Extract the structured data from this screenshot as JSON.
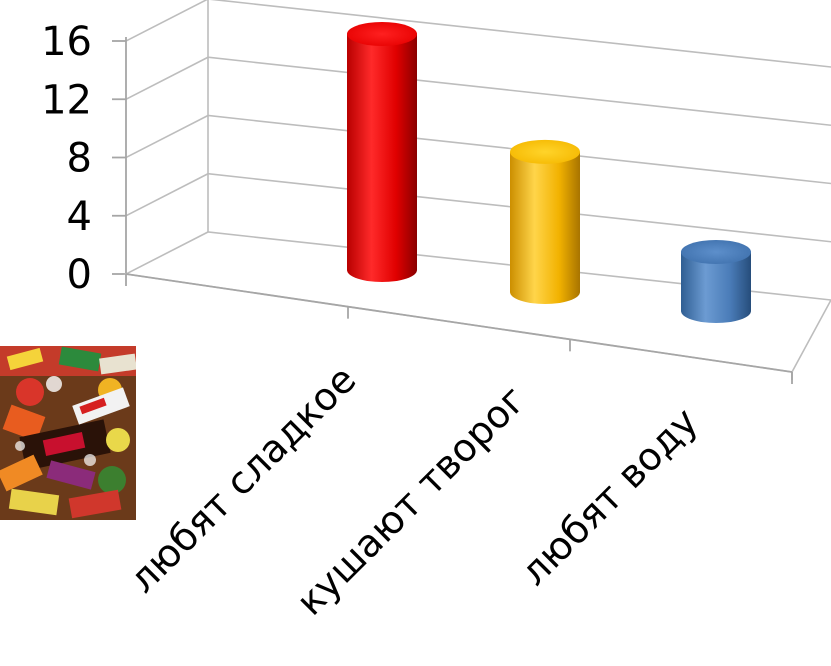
{
  "chart_data": {
    "type": "bar",
    "style": "3d-cylinder",
    "categories": [
      "любят сладкое",
      "кушают творог",
      "любят воду"
    ],
    "values": [
      16,
      9.5,
      4
    ],
    "colors": [
      "#ff0000",
      "#ffc000",
      "#4f81bd"
    ],
    "ylim": [
      0,
      16
    ],
    "yticks": [
      0,
      4,
      8,
      12,
      16
    ],
    "ytick_labels": [
      "0",
      "4",
      "8",
      "12",
      "16"
    ],
    "title": "",
    "xlabel": "",
    "ylabel": "",
    "grid": true,
    "legend": "none"
  },
  "decoration": {
    "picture": "candy-pile-photo"
  }
}
